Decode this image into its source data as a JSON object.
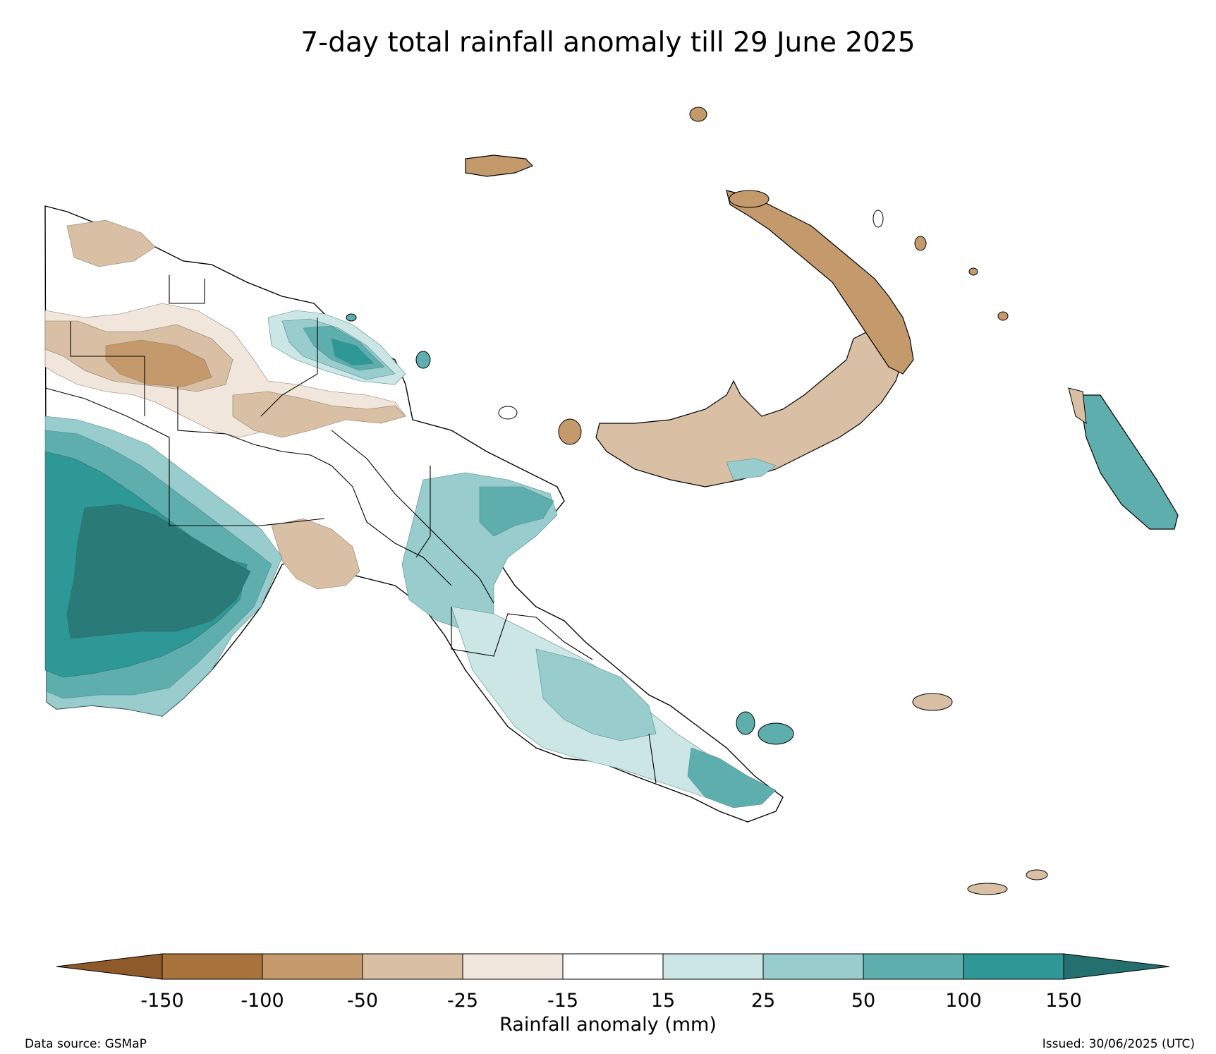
{
  "title": "7-day total rainfall anomaly till 29 June 2025",
  "colorbar": {
    "title": "Rainfall anomaly (mm)",
    "ticks": [
      "-150",
      "-100",
      "-50",
      "-25",
      "-15",
      "15",
      "25",
      "50",
      "100",
      "150"
    ],
    "colors": {
      "extend_low": "#8e5a2a",
      "lt_-100": "#a8723c",
      "-100_-50": "#c49a6c",
      "-50_-25": "#d9bfa3",
      "-25_-15": "#f0e6dc",
      "-15_15": "#ffffff",
      "15_25": "#cce6e6",
      "25_50": "#99cccc",
      "50_100": "#5faeae",
      "100_150": "#2e9896",
      "extend_high": "#24706f"
    }
  },
  "footer": {
    "source": "Data source: GSMaP",
    "issued": "Issued: 30/06/2025 (UTC)"
  },
  "map_legend_colors": {
    "brown_dark": "#c49a6c",
    "brown_light": "#d9bfa3",
    "tan_pale": "#f0e6dc",
    "teal_pale": "#cce6e6",
    "teal_light": "#99cccc",
    "teal_mid": "#5faeae",
    "teal_dark": "#2e9896",
    "teal_darkest": "#2a7a78"
  }
}
